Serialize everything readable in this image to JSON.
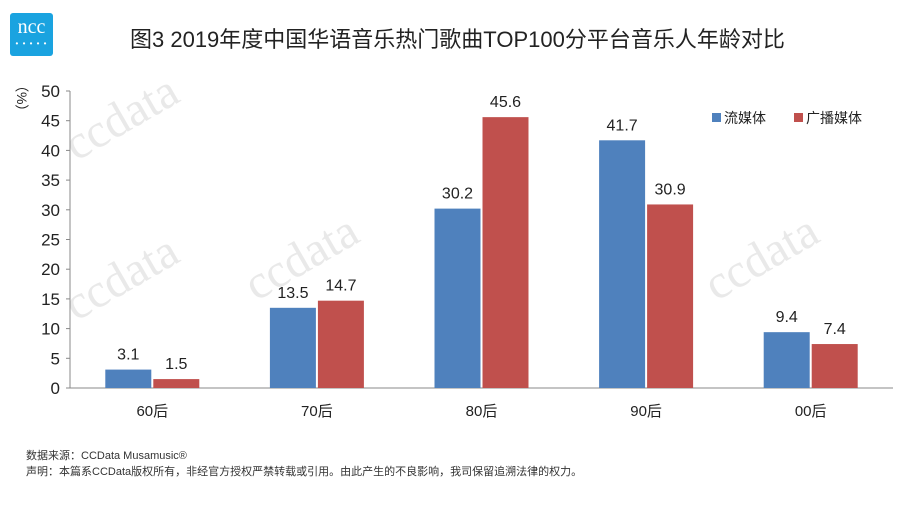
{
  "logo": "ncc",
  "title": "图3  2019年度中国华语音乐热门歌曲TOP100分平台音乐人年龄对比",
  "watermark": "ccdata",
  "chart_data": {
    "type": "bar",
    "title": "图3  2019年度中国华语音乐热门歌曲TOP100分平台音乐人年龄对比",
    "ylabel": "（%）",
    "ylim": [
      0,
      50
    ],
    "yticks": [
      0,
      5,
      10,
      15,
      20,
      25,
      30,
      35,
      40,
      45,
      50
    ],
    "categories": [
      "60后",
      "70后",
      "80后",
      "90后",
      "00后"
    ],
    "series": [
      {
        "name": "流媒体",
        "color": "#4f81bd",
        "values": [
          3.1,
          13.5,
          30.2,
          41.7,
          9.4
        ]
      },
      {
        "name": "广播媒体",
        "color": "#c0504d",
        "values": [
          1.5,
          14.7,
          45.6,
          30.9,
          7.4
        ]
      }
    ],
    "legend": "top-right"
  },
  "footer": {
    "source": "数据来源：CCData  Musamusic®",
    "statement": "声明：本篇系CCData版权所有，非经官方授权严禁转载或引用。由此产生的不良影响，我司保留追溯法律的权力。"
  }
}
